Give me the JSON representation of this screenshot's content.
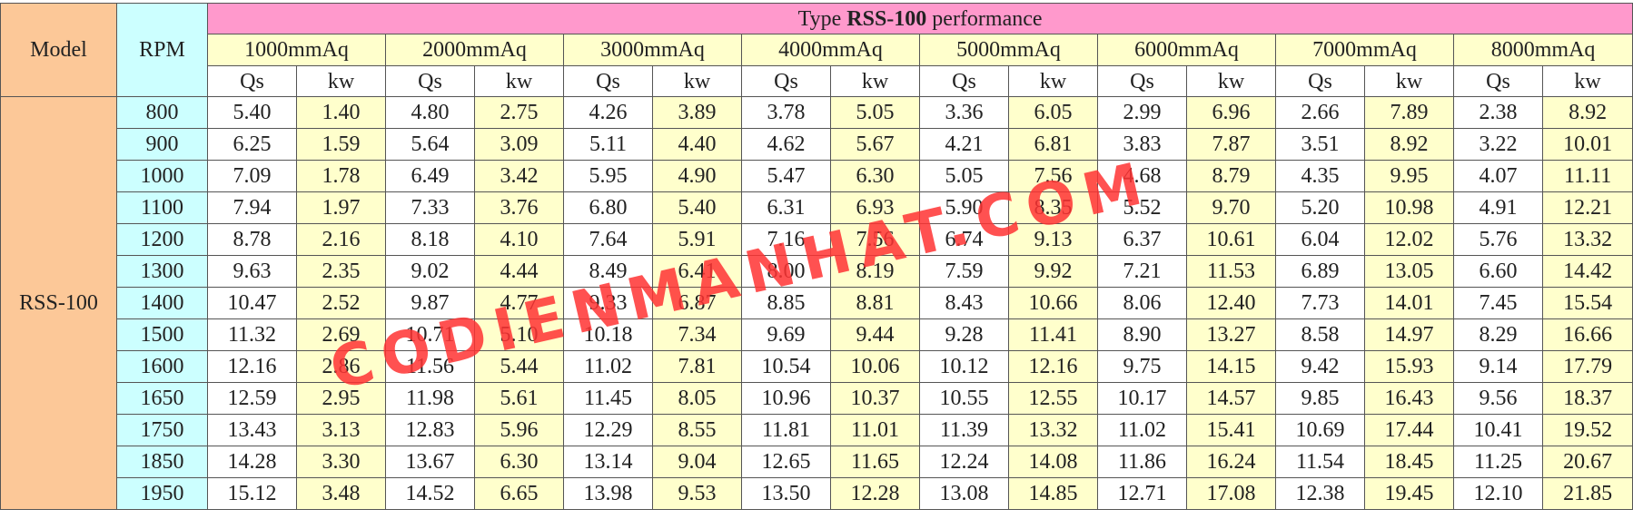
{
  "header": {
    "model_label": "Model",
    "rpm_label": "RPM",
    "title_prefix": "Type ",
    "title_bold": "RSS-100",
    "title_suffix": " performance",
    "qs_label": "Qs",
    "kw_label": "kw"
  },
  "pressures": [
    "1000mmAq",
    "2000mmAq",
    "3000mmAq",
    "4000mmAq",
    "5000mmAq",
    "6000mmAq",
    "7000mmAq",
    "8000mmAq"
  ],
  "model_value": "RSS-100",
  "rows": [
    {
      "rpm": "800",
      "vals": [
        "5.40",
        "1.40",
        "4.80",
        "2.75",
        "4.26",
        "3.89",
        "3.78",
        "5.05",
        "3.36",
        "6.05",
        "2.99",
        "6.96",
        "2.66",
        "7.89",
        "2.38",
        "8.92"
      ]
    },
    {
      "rpm": "900",
      "vals": [
        "6.25",
        "1.59",
        "5.64",
        "3.09",
        "5.11",
        "4.40",
        "4.62",
        "5.67",
        "4.21",
        "6.81",
        "3.83",
        "7.87",
        "3.51",
        "8.92",
        "3.22",
        "10.01"
      ]
    },
    {
      "rpm": "1000",
      "vals": [
        "7.09",
        "1.78",
        "6.49",
        "3.42",
        "5.95",
        "4.90",
        "5.47",
        "6.30",
        "5.05",
        "7.56",
        "4.68",
        "8.79",
        "4.35",
        "9.95",
        "4.07",
        "11.11"
      ]
    },
    {
      "rpm": "1100",
      "vals": [
        "7.94",
        "1.97",
        "7.33",
        "3.76",
        "6.80",
        "5.40",
        "6.31",
        "6.93",
        "5.90",
        "8.35",
        "5.52",
        "9.70",
        "5.20",
        "10.98",
        "4.91",
        "12.21"
      ]
    },
    {
      "rpm": "1200",
      "vals": [
        "8.78",
        "2.16",
        "8.18",
        "4.10",
        "7.64",
        "5.91",
        "7.16",
        "7.56",
        "6.74",
        "9.13",
        "6.37",
        "10.61",
        "6.04",
        "12.02",
        "5.76",
        "13.32"
      ]
    },
    {
      "rpm": "1300",
      "vals": [
        "9.63",
        "2.35",
        "9.02",
        "4.44",
        "8.49",
        "6.41",
        "8.00",
        "8.19",
        "7.59",
        "9.92",
        "7.21",
        "11.53",
        "6.89",
        "13.05",
        "6.60",
        "14.42"
      ]
    },
    {
      "rpm": "1400",
      "vals": [
        "10.47",
        "2.52",
        "9.87",
        "4.77",
        "9.33",
        "6.87",
        "8.85",
        "8.81",
        "8.43",
        "10.66",
        "8.06",
        "12.40",
        "7.73",
        "14.01",
        "7.45",
        "15.54"
      ]
    },
    {
      "rpm": "1500",
      "vals": [
        "11.32",
        "2.69",
        "10.71",
        "5.10",
        "10.18",
        "7.34",
        "9.69",
        "9.44",
        "9.28",
        "11.41",
        "8.90",
        "13.27",
        "8.58",
        "14.97",
        "8.29",
        "16.66"
      ]
    },
    {
      "rpm": "1600",
      "vals": [
        "12.16",
        "2.86",
        "11.56",
        "5.44",
        "11.02",
        "7.81",
        "10.54",
        "10.06",
        "10.12",
        "12.16",
        "9.75",
        "14.15",
        "9.42",
        "15.93",
        "9.14",
        "17.79"
      ]
    },
    {
      "rpm": "1650",
      "vals": [
        "12.59",
        "2.95",
        "11.98",
        "5.61",
        "11.45",
        "8.05",
        "10.96",
        "10.37",
        "10.55",
        "12.55",
        "10.17",
        "14.57",
        "9.85",
        "16.43",
        "9.56",
        "18.37"
      ]
    },
    {
      "rpm": "1750",
      "vals": [
        "13.43",
        "3.13",
        "12.83",
        "5.96",
        "12.29",
        "8.55",
        "11.81",
        "11.01",
        "11.39",
        "13.32",
        "11.02",
        "15.41",
        "10.69",
        "17.44",
        "10.41",
        "19.52"
      ]
    },
    {
      "rpm": "1850",
      "vals": [
        "14.28",
        "3.30",
        "13.67",
        "6.30",
        "13.14",
        "9.04",
        "12.65",
        "11.65",
        "12.24",
        "14.08",
        "11.86",
        "16.24",
        "11.54",
        "18.45",
        "11.25",
        "20.67"
      ]
    },
    {
      "rpm": "1950",
      "vals": [
        "15.12",
        "3.48",
        "14.52",
        "6.65",
        "13.98",
        "9.53",
        "13.50",
        "12.28",
        "13.08",
        "14.85",
        "12.71",
        "17.08",
        "12.38",
        "19.45",
        "12.10",
        "21.85"
      ]
    }
  ],
  "watermark": "CODIENMANHAT.COM",
  "colors": {
    "title_bg": "#ff99cc",
    "pressure_bg": "#ffffcc",
    "model_bg": "#fcc898",
    "rpm_bg": "#ccffff",
    "kw_bg": "#ffffcc",
    "watermark": "#ff3333"
  }
}
